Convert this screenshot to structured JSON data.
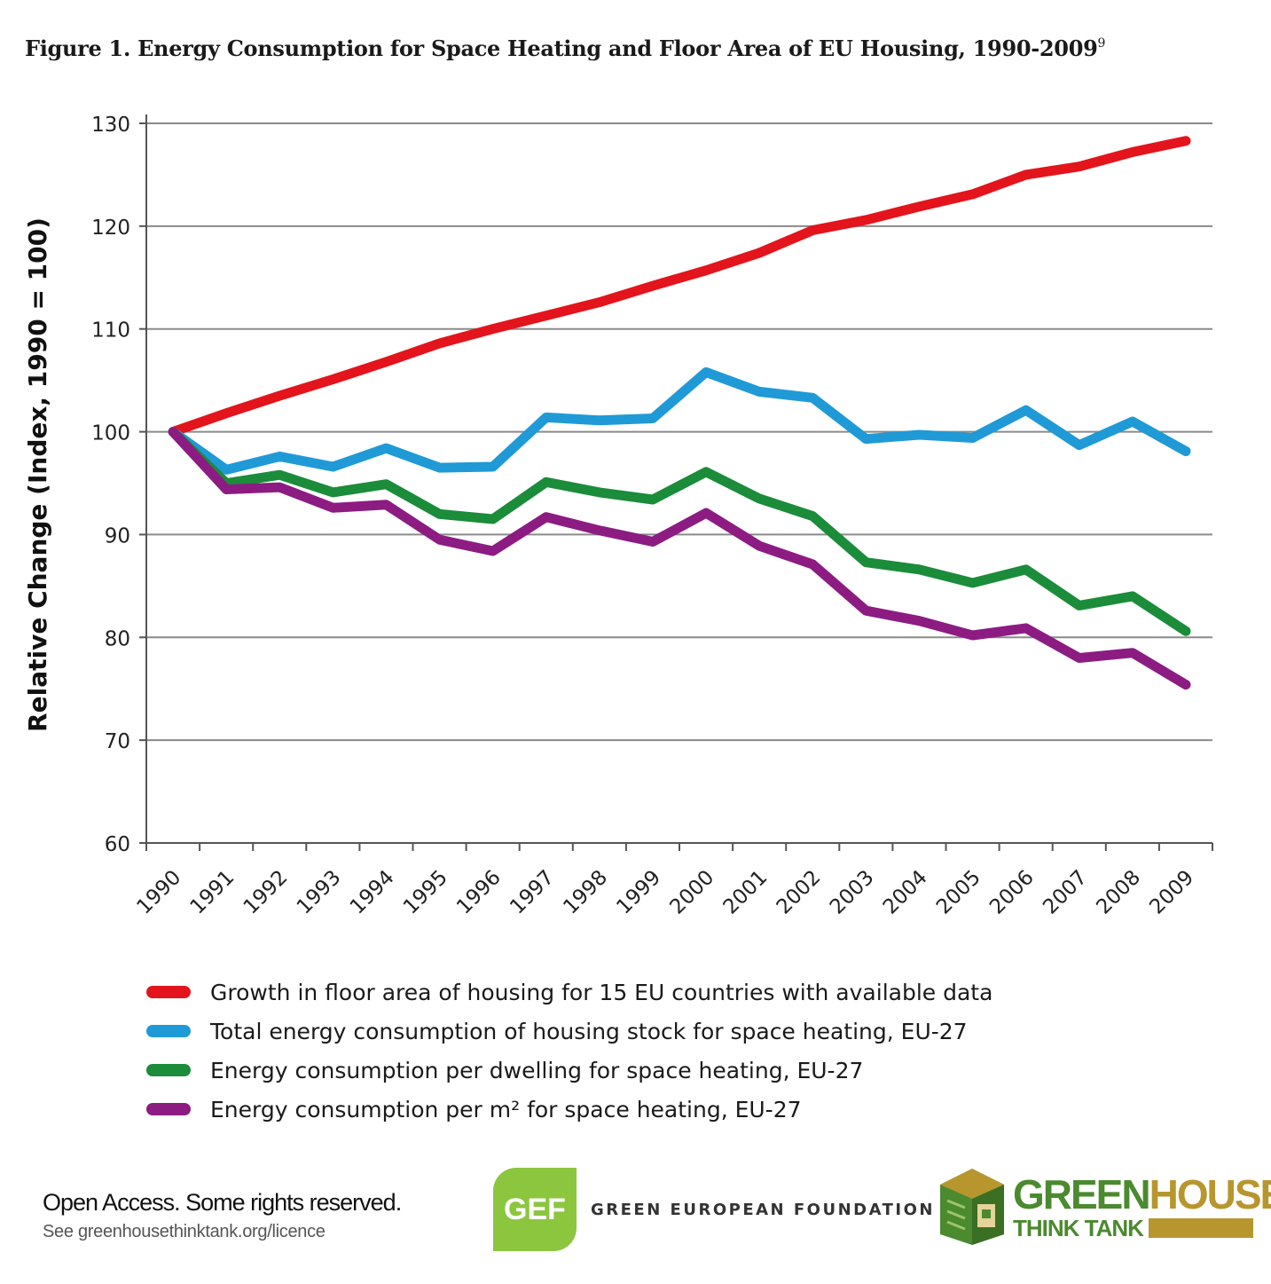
{
  "figure": {
    "title": "Figure 1. Energy Consumption for Space Heating and Floor Area of EU Housing, 1990-2009",
    "footnote_marker": "9"
  },
  "chart_data": {
    "type": "line",
    "ylabel": "Relative Change (Index, 1990 = 100)",
    "xlabel": "",
    "ylim": [
      60,
      130
    ],
    "yticks": [
      60,
      70,
      80,
      90,
      100,
      110,
      120,
      130
    ],
    "grid": true,
    "legend_position": "bottom",
    "categories": [
      "1990",
      "1991",
      "1992",
      "1993",
      "1994",
      "1995",
      "1996",
      "1997",
      "1998",
      "1999",
      "2000",
      "2001",
      "2002",
      "2003",
      "2004",
      "2005",
      "2006",
      "2007",
      "2008",
      "2009"
    ],
    "series": [
      {
        "name": "Growth in floor area of housing for 15 EU countries with available data",
        "color": "#e3141c",
        "values": [
          100,
          101.8,
          103.5,
          105.1,
          106.8,
          108.6,
          110,
          111.3,
          112.6,
          114.2,
          115.7,
          117.4,
          119.6,
          120.6,
          121.9,
          123.1,
          125,
          125.8,
          127.2,
          128.3
        ]
      },
      {
        "name": "Total energy consumption of housing stock for space heating, EU-27",
        "color": "#1f9ad7",
        "values": [
          100,
          96.3,
          97.6,
          96.6,
          98.4,
          96.5,
          96.6,
          101.4,
          101.1,
          101.3,
          105.8,
          103.9,
          103.3,
          99.3,
          99.7,
          99.4,
          102.1,
          98.7,
          101,
          98.1
        ]
      },
      {
        "name": "Energy consumption per dwelling for space heating, EU-27",
        "color": "#1b8c3a",
        "values": [
          100,
          95,
          95.8,
          94.1,
          94.9,
          92,
          91.5,
          95.1,
          94.1,
          93.4,
          96.1,
          93.5,
          91.8,
          87.3,
          86.6,
          85.3,
          86.6,
          83.1,
          84,
          80.6
        ]
      },
      {
        "name": "Energy consumption per m² for space heating, EU-27",
        "color": "#8c1c82",
        "values": [
          100,
          94.4,
          94.6,
          92.6,
          92.9,
          89.5,
          88.4,
          91.7,
          90.4,
          89.3,
          92.1,
          88.9,
          87.1,
          82.6,
          81.6,
          80.2,
          80.9,
          78,
          78.5,
          75.4
        ]
      }
    ]
  },
  "footer": {
    "rights_line1": "Open Access. Some rights reserved.",
    "rights_line2": "See greenhousethinktank.org/licence",
    "gef_logo_text": "GEF",
    "gef_name": "GREEN EUROPEAN FOUNDATION",
    "gh_name_green": "GREEN",
    "gh_name_gold": "HOUSE",
    "gh_sub": "THINK TANK",
    "gh_colors": {
      "green": "#4b8a2f",
      "gold": "#b8962e"
    },
    "gef_color": "#8cc63f"
  }
}
